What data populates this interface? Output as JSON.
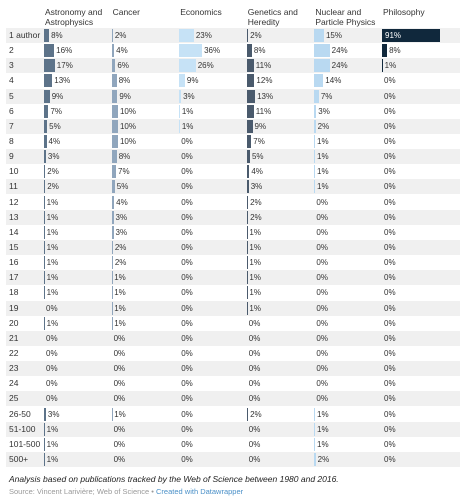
{
  "chart_data": {
    "type": "bar-table",
    "categories": [
      "1 author",
      "2",
      "3",
      "4",
      "5",
      "6",
      "7",
      "8",
      "9",
      "10",
      "11",
      "12",
      "13",
      "14",
      "15",
      "16",
      "17",
      "18",
      "19",
      "20",
      "21",
      "22",
      "23",
      "24",
      "25",
      "26-50",
      "51-100",
      "101-500",
      "500+"
    ],
    "xlim": [
      0,
      100
    ],
    "series": [
      {
        "name": "Astronomy and Astrophysics",
        "color": "#5d7389",
        "values": [
          8,
          16,
          17,
          13,
          9,
          7,
          5,
          4,
          3,
          2,
          2,
          1,
          1,
          1,
          1,
          1,
          1,
          1,
          0,
          1,
          0,
          0,
          0,
          0,
          0,
          3,
          1,
          1,
          1
        ],
        "value_labels": [
          "8%",
          "16%",
          "17%",
          "13%",
          "9%",
          "7%",
          "5%",
          "4%",
          "3%",
          "2%",
          "2%",
          "1%",
          "1%",
          "1%",
          "1%",
          "1%",
          "1%",
          "1%",
          "0%",
          "1%",
          "0%",
          "0%",
          "0%",
          "0%",
          "0%",
          "3%",
          "1%",
          "1%",
          "1%"
        ]
      },
      {
        "name": "Cancer",
        "color": "#90a6bd",
        "values": [
          2,
          4,
          6,
          8,
          9,
          10,
          10,
          10,
          8,
          7,
          5,
          4,
          3,
          3,
          2,
          2,
          1,
          1,
          1,
          1,
          0,
          0,
          0,
          0,
          0,
          1,
          0,
          0,
          0
        ],
        "value_labels": [
          "2%",
          "4%",
          "6%",
          "8%",
          "9%",
          "10%",
          "10%",
          "10%",
          "8%",
          "7%",
          "5%",
          "4%",
          "3%",
          "3%",
          "2%",
          "2%",
          "1%",
          "1%",
          "1%",
          "1%",
          "0%",
          "0%",
          "0%",
          "0%",
          "0%",
          "1%",
          "0%",
          "0%",
          "0%"
        ]
      },
      {
        "name": "Economics",
        "color": "#c6e2f6",
        "values": [
          23,
          36,
          26,
          9,
          3,
          1,
          1,
          0,
          0,
          0,
          0,
          0,
          0,
          0,
          0,
          0,
          0,
          0,
          0,
          0,
          0,
          0,
          0,
          0,
          0,
          0,
          0,
          0,
          0
        ],
        "value_labels": [
          "23%",
          "36%",
          "26%",
          "9%",
          "3%",
          "1%",
          "1%",
          "0%",
          "0%",
          "0%",
          "0%",
          "0%",
          "0%",
          "0%",
          "0%",
          "0%",
          "0%",
          "0%",
          "0%",
          "0%",
          "0%",
          "0%",
          "0%",
          "0%",
          "0%",
          "0%",
          "0%",
          "0%",
          "0%"
        ]
      },
      {
        "name": "Genetics and Heredity",
        "color": "#4a5a6c",
        "values": [
          2,
          8,
          11,
          12,
          13,
          11,
          9,
          7,
          5,
          4,
          3,
          2,
          2,
          1,
          1,
          1,
          1,
          1,
          1,
          0,
          0,
          0,
          0,
          0,
          0,
          2,
          0,
          0,
          0
        ],
        "value_labels": [
          "2%",
          "8%",
          "11%",
          "12%",
          "13%",
          "11%",
          "9%",
          "7%",
          "5%",
          "4%",
          "3%",
          "2%",
          "2%",
          "1%",
          "1%",
          "1%",
          "1%",
          "1%",
          "1%",
          "0%",
          "0%",
          "0%",
          "0%",
          "0%",
          "0%",
          "2%",
          "0%",
          "0%",
          "0%"
        ]
      },
      {
        "name": "Nuclear and Particle Physics",
        "color": "#b9d9f1",
        "values": [
          15,
          24,
          24,
          14,
          7,
          3,
          2,
          1,
          1,
          1,
          1,
          0,
          0,
          0,
          0,
          0,
          0,
          0,
          0,
          0,
          0,
          0,
          0,
          0,
          0,
          1,
          1,
          1,
          2
        ],
        "value_labels": [
          "15%",
          "24%",
          "24%",
          "14%",
          "7%",
          "3%",
          "2%",
          "1%",
          "1%",
          "1%",
          "1%",
          "0%",
          "0%",
          "0%",
          "0%",
          "0%",
          "0%",
          "0%",
          "0%",
          "0%",
          "0%",
          "0%",
          "0%",
          "0%",
          "0%",
          "1%",
          "1%",
          "1%",
          "2%"
        ]
      },
      {
        "name": "Philosophy",
        "color": "#10283c",
        "values": [
          91,
          8,
          1,
          0,
          0,
          0,
          0,
          0,
          0,
          0,
          0,
          0,
          0,
          0,
          0,
          0,
          0,
          0,
          0,
          0,
          0,
          0,
          0,
          0,
          0,
          0,
          0,
          0,
          0
        ],
        "value_labels": [
          "91%",
          "8%",
          "1%",
          "0%",
          "0%",
          "0%",
          "0%",
          "0%",
          "0%",
          "0%",
          "0%",
          "0%",
          "0%",
          "0%",
          "0%",
          "0%",
          "0%",
          "0%",
          "0%",
          "0%",
          "0%",
          "0%",
          "0%",
          "0%",
          "0%",
          "0%",
          "0%",
          "0%",
          "0%"
        ]
      }
    ],
    "note": "Analysis based on publications tracked by the Web of Science between 1980 and 2016.",
    "source": "Source: Vincent Larivière; Web of Science",
    "credit": "Created with Datawrapper"
  }
}
